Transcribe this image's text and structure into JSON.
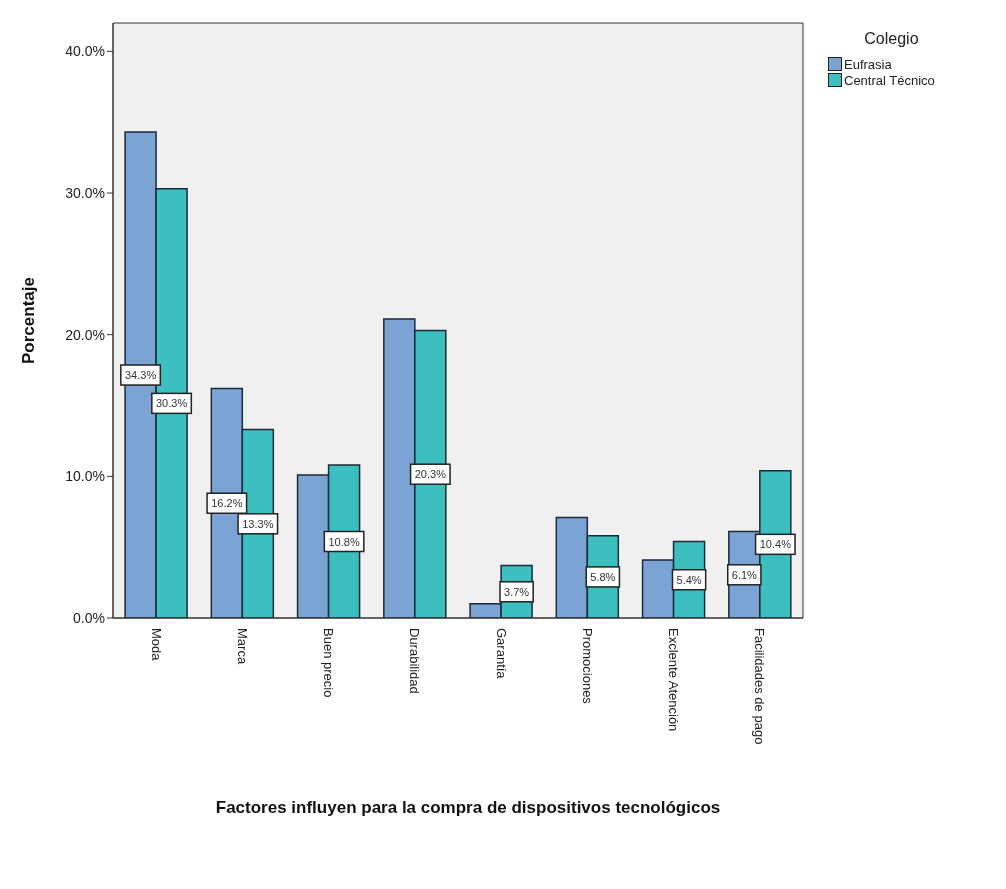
{
  "chart_data": {
    "type": "bar",
    "xlabel": "Factores influyen para la compra de dispositivos tecnológicos",
    "ylabel": "Porcentaje",
    "legend_title": "Colegio",
    "legend": "top right",
    "grid": false,
    "categories": [
      "Moda",
      "Marca",
      "Buen precio",
      "Durabilidad",
      "Garantía",
      "Promociones",
      "Exclente Atención",
      "Facilidades de pago"
    ],
    "series": [
      {
        "name": "Eufrasia",
        "color": "#7ba4d4",
        "values": [
          34.3,
          16.2,
          10.1,
          21.1,
          1.0,
          7.1,
          4.1,
          6.1
        ],
        "value_labels": [
          "34.3%",
          "16.2%",
          null,
          null,
          null,
          null,
          null,
          "6.1%"
        ]
      },
      {
        "name": "Central Técnico",
        "color": "#3ebfbf",
        "values": [
          30.3,
          13.3,
          10.8,
          20.3,
          3.7,
          5.8,
          5.4,
          10.4
        ],
        "value_labels": [
          "30.3%",
          "13.3%",
          "10.8%",
          "20.3%",
          "3.7%",
          "5.8%",
          "5.4%",
          "10.4%"
        ]
      }
    ],
    "ylim": [
      0,
      42
    ],
    "yticks": [
      {
        "value": 0,
        "label": "0.0%"
      },
      {
        "value": 10,
        "label": "10.0%"
      },
      {
        "value": 20,
        "label": "20.0%"
      },
      {
        "value": 30,
        "label": "30.0%"
      },
      {
        "value": 40,
        "label": "40.0%"
      }
    ]
  }
}
